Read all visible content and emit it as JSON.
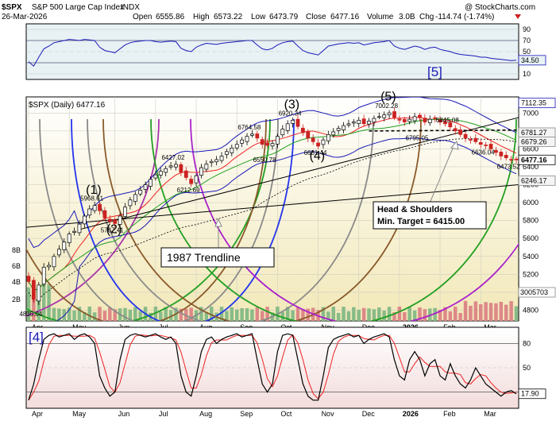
{
  "header": {
    "symbol": "$SPX",
    "name": "S&P 500 Large Cap Index",
    "exchange": "INDX",
    "source": "@ StockCharts.com",
    "date": "26-Mar-2026",
    "open_label": "Open",
    "open": "6555.86",
    "high_label": "High",
    "high": "6573.22",
    "low_label": "Low",
    "low": "6473.79",
    "close_label": "Close",
    "close": "6477.16",
    "volume_label": "Volume",
    "volume": "3.0B",
    "chg_label": "Chg",
    "chg": "-114.74 (-1.74%)"
  },
  "colors": {
    "rsi_bg": "#e8f1f4",
    "price_bg_top": "#ffffff",
    "price_bg_bottom": "#f2e8b8",
    "stoch_bg": "#f6e6e6",
    "up_candle": "#000000",
    "down_candle": "#cc2222",
    "bb_line": "#1a1ab8",
    "ma_red": "#ee2222",
    "ma_green": "#22a022",
    "volume_up": "#88bb88",
    "volume_down": "#dd8888",
    "stoch_k": "#000000",
    "stoch_d": "#ee2222",
    "rsi_line": "#1a1ab8"
  },
  "chart_data": {
    "type": "candlestick",
    "title": "$SPX S&P 500 Large Cap Index INDX",
    "legend": "$SPX (Daily) 6477.16",
    "x_labels": [
      "Apr",
      "May",
      "Jun",
      "Jul",
      "Aug",
      "Sep",
      "Oct",
      "Nov",
      "Dec",
      "2026",
      "Feb",
      "Mar"
    ],
    "y_ticks": [
      4800,
      5000,
      5200,
      5400,
      5600,
      5800,
      6000,
      6200,
      6400,
      6600,
      6800,
      7000
    ],
    "ylim": [
      4680,
      7180
    ],
    "price_tags": [
      {
        "value": 7112.35,
        "text": "7112.35",
        "kind": "bb-upper"
      },
      {
        "value": 6781.27,
        "text": "6781.27",
        "kind": "ma"
      },
      {
        "value": 6679.26,
        "text": "6679.26",
        "kind": "ma"
      },
      {
        "value": 6477.16,
        "text": "6477.16",
        "kind": "close"
      },
      {
        "value": 6246.17,
        "text": "6246.17",
        "kind": "ma"
      }
    ],
    "volume_tag": "3005703",
    "left_edge_labels": [
      "8B",
      "6B",
      "4B",
      "2B"
    ],
    "close_series": [
      5120,
      4920,
      5080,
      5280,
      5300,
      5400,
      5480,
      5560,
      5650,
      5680,
      5760,
      5850,
      5930,
      5968,
      5910,
      5830,
      5790,
      5767,
      5850,
      5950,
      6030,
      6090,
      6140,
      6200,
      6260,
      6310,
      6350,
      6380,
      6410,
      6427,
      6340,
      6280,
      6212,
      6300,
      6390,
      6430,
      6460,
      6480,
      6520,
      6570,
      6610,
      6650,
      6700,
      6740,
      6765,
      6720,
      6650,
      6640,
      6660,
      6740,
      6820,
      6880,
      6920,
      6850,
      6780,
      6720,
      6680,
      6631,
      6700,
      6760,
      6790,
      6830,
      6860,
      6880,
      6900,
      6920,
      6880,
      6910,
      6940,
      6960,
      6980,
      7002,
      6950,
      6920,
      6900,
      6930,
      6960,
      6950,
      6900,
      6930,
      6940,
      6900,
      6880,
      6845,
      6800,
      6760,
      6720,
      6700,
      6680,
      6650,
      6636,
      6600,
      6560,
      6520,
      6500,
      6473,
      6477
    ],
    "annotations": [
      {
        "index": 13,
        "price": 5968.61,
        "text": "5968.61"
      },
      {
        "index": 17,
        "price": 5767.41,
        "text": "5767.41"
      },
      {
        "index": 29,
        "price": 6427.02,
        "text": "6427.02"
      },
      {
        "index": 32,
        "price": 6212.69,
        "text": "6212.69"
      },
      {
        "index": 44,
        "price": 6764.58,
        "text": "6764.58"
      },
      {
        "index": 47,
        "price": 6550.78,
        "text": "6550.78"
      },
      {
        "index": 52,
        "price": 6920.34,
        "text": "6920.34"
      },
      {
        "index": 57,
        "price": 6631.44,
        "text": "6631.44"
      },
      {
        "index": 71,
        "price": 7002.28,
        "text": "7002.28"
      },
      {
        "index": 77,
        "price": 6795.05,
        "text": "6795.05"
      },
      {
        "index": 83,
        "price": 6845.08,
        "text": "6845.08"
      },
      {
        "index": 90,
        "price": 6636.04,
        "text": "6636.04"
      },
      {
        "index": 95,
        "price": 6473.52,
        "text": "6473.52"
      },
      {
        "index": 1,
        "price": 4835.04,
        "text": "4835.04"
      }
    ],
    "waves": [
      {
        "text": "(1)",
        "index": 13,
        "price": 6100
      },
      {
        "text": "(2)",
        "index": 17,
        "price": 5660
      },
      {
        "text": "(3)",
        "index": 52,
        "price": 7050
      },
      {
        "text": "(4)",
        "index": 57,
        "price": 6480
      },
      {
        "text": "(5)",
        "index": 71,
        "price": 7140
      },
      {
        "text": "[5]",
        "index": 70,
        "price": null
      },
      {
        "text": "[4]",
        "index": 0,
        "price": null
      }
    ],
    "trendline_label": "1987 Trendline",
    "hs_label_line1": "Head & Shoulders",
    "hs_label_line2": "Min. Target = 6415.00",
    "rsi": {
      "ticks": [
        10,
        30,
        50,
        70,
        90
      ],
      "last_tag": "34.50",
      "values": [
        32,
        24,
        40,
        55,
        60,
        66,
        68,
        70,
        72,
        71,
        70,
        72,
        71,
        70,
        58,
        52,
        50,
        48,
        55,
        62,
        66,
        68,
        69,
        70,
        70,
        68,
        67,
        68,
        69,
        68,
        56,
        52,
        50,
        58,
        62,
        65,
        64,
        63,
        65,
        66,
        67,
        68,
        69,
        70,
        70,
        62,
        55,
        53,
        56,
        62,
        66,
        68,
        69,
        60,
        52,
        48,
        46,
        44,
        52,
        60,
        62,
        64,
        65,
        66,
        65,
        66,
        62,
        64,
        66,
        67,
        68,
        70,
        60,
        56,
        54,
        57,
        60,
        58,
        54,
        57,
        58,
        54,
        52,
        50,
        47,
        45,
        44,
        43,
        42,
        40,
        40,
        38,
        37,
        36,
        35,
        34,
        34.5
      ]
    },
    "stochastic": {
      "ticks": [
        20,
        50,
        80
      ],
      "last_tag": "17.90",
      "k_values": [
        10,
        30,
        60,
        85,
        90,
        92,
        88,
        90,
        92,
        85,
        90,
        92,
        88,
        80,
        40,
        25,
        15,
        20,
        60,
        85,
        90,
        92,
        90,
        88,
        90,
        92,
        88,
        85,
        88,
        80,
        40,
        20,
        15,
        40,
        70,
        85,
        88,
        80,
        85,
        88,
        90,
        92,
        88,
        90,
        92,
        60,
        30,
        20,
        30,
        70,
        90,
        92,
        90,
        60,
        30,
        15,
        10,
        10,
        40,
        75,
        85,
        88,
        90,
        92,
        88,
        90,
        80,
        85,
        88,
        90,
        92,
        88,
        60,
        40,
        35,
        60,
        70,
        60,
        40,
        55,
        60,
        40,
        35,
        55,
        40,
        30,
        25,
        35,
        50,
        40,
        30,
        25,
        20,
        15,
        20,
        22,
        17.9
      ]
    }
  }
}
